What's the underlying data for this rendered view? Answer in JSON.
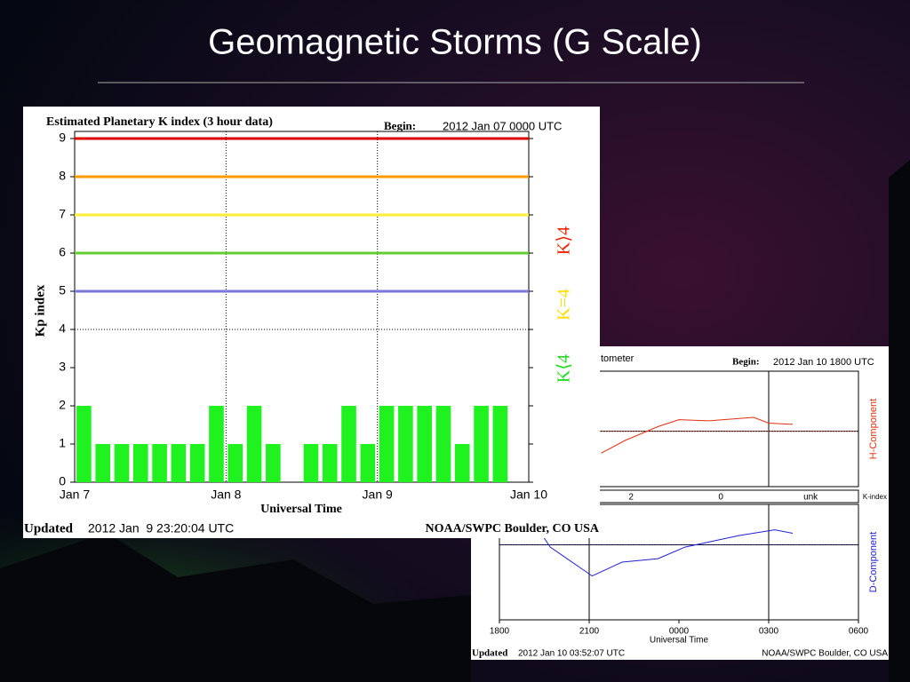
{
  "slide_title": "Geomagnetic Storms (G Scale)",
  "chart_data": [
    {
      "type": "bar",
      "title": "Estimated Planetary K index (3 hour data)",
      "begin_label": "Begin:",
      "begin": "2012 Jan 07 0000 UTC",
      "ylabel": "Kp index",
      "xlabel": "Universal Time",
      "updated_label": "Updated",
      "updated": "2012 Jan  9 23:20:04 UTC",
      "source": "NOAA/SWPC Boulder, CO USA",
      "x": [
        0,
        0.125,
        0.25,
        0.375,
        0.5,
        0.625,
        0.75,
        0.875,
        1,
        1.125,
        1.25,
        1.375,
        1.5,
        1.625,
        1.75,
        1.875,
        2,
        2.125,
        2.25,
        2.375,
        2.5,
        2.625,
        2.75,
        2.875
      ],
      "values": [
        2,
        1,
        1,
        1,
        1,
        1,
        1,
        2,
        1,
        2,
        1,
        0,
        1,
        1,
        2,
        1,
        2,
        2,
        2,
        2,
        1,
        2,
        2,
        null
      ],
      "color": "#1ff21f",
      "xlim": [
        0,
        3
      ],
      "xticks": [
        {
          "value": 0,
          "label": "Jan 7"
        },
        {
          "value": 1,
          "label": "Jan 8"
        },
        {
          "value": 2,
          "label": "Jan 9"
        },
        {
          "value": 3,
          "label": "Jan 10"
        }
      ],
      "ylim": [
        0,
        9
      ],
      "yticks": [
        0,
        1,
        2,
        3,
        4,
        5,
        6,
        7,
        8,
        9
      ],
      "y_grid": [
        4
      ],
      "thresholds": [
        {
          "value": 5,
          "color": "#7777dd"
        },
        {
          "value": 6,
          "color": "#66cc33"
        },
        {
          "value": 7,
          "color": "#ffee33"
        },
        {
          "value": 8,
          "color": "#ff9900"
        },
        {
          "value": 9,
          "color": "#e00000"
        }
      ],
      "legend": [
        {
          "label": "K⟨4",
          "color": "#22dd22"
        },
        {
          "label": "K=4",
          "color": "#ffdd00"
        },
        {
          "label": "K⟩4",
          "color": "#ee2200"
        }
      ]
    },
    {
      "type": "line",
      "title": "tometer",
      "begin_label": "Begin:",
      "begin": "2012 Jan 10 1800 UTC",
      "xlabel": "Universal Time",
      "updated_label": "Updated",
      "updated": "2012 Jan 10 03:52:07 UTC",
      "source": "NOAA/SWPC Boulder, CO USA",
      "xlim": [
        0,
        12
      ],
      "xticks": [
        {
          "value": 0,
          "label": "1800"
        },
        {
          "value": 3,
          "label": "2100"
        },
        {
          "value": 6,
          "label": "0000"
        },
        {
          "value": 9,
          "label": "0300"
        },
        {
          "value": 12,
          "label": "0600"
        }
      ],
      "vlines": [
        3,
        9
      ],
      "kindex": {
        "label": "K-index",
        "x": [
          4.4,
          7.4,
          10.4
        ],
        "labels": [
          "2",
          "0",
          "unk"
        ]
      },
      "panels": [
        {
          "name": "H-Component",
          "color": "#e03010",
          "ylim": [
            0,
            100
          ],
          "reference": 48,
          "x": [
            3.4,
            4.2,
            5.3,
            6,
            7,
            8.5,
            9,
            9.8
          ],
          "values": [
            29,
            40,
            52,
            58,
            57,
            60,
            55,
            54
          ]
        },
        {
          "name": "D-Component",
          "color": "#2020d0",
          "ylim": [
            -15,
            5
          ],
          "yticks": [
            5
          ],
          "reference": -2,
          "x": [
            0,
            1.1,
            1.7,
            3.1,
            4.1,
            5.3,
            6.2,
            8,
            9.2,
            9.8
          ],
          "values": [
            3.6,
            2.2,
            -2.4,
            -7.4,
            -5,
            -4.4,
            -2.4,
            -0.4,
            0.6,
            0
          ]
        }
      ]
    }
  ]
}
